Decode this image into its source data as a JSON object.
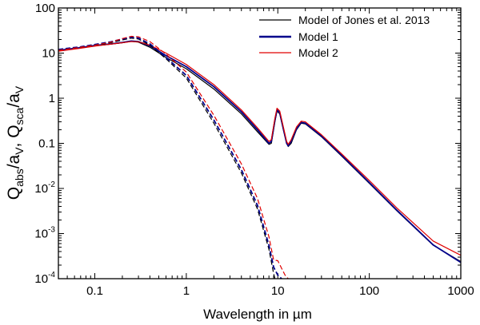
{
  "chart_data": {
    "type": "line",
    "xlabel_main": "Wavelength in ",
    "xlabel_unit": "µm",
    "ylabel": {
      "q1": "Q",
      "s1": "abs",
      "m1": "/a",
      "s2": "V",
      "sep": ", ",
      "q2": "Q",
      "s3": "sca",
      "m2": "/a",
      "s4": "V"
    },
    "x_scale": "log",
    "y_scale": "log",
    "xlim": [
      0.04,
      1000
    ],
    "ylim": [
      0.0001,
      100
    ],
    "x_ticks": [
      {
        "value": 0.1,
        "label": "0.1"
      },
      {
        "value": 1,
        "label": "1"
      },
      {
        "value": 10,
        "label": "10"
      },
      {
        "value": 100,
        "label": "100"
      },
      {
        "value": 1000,
        "label": "1000"
      }
    ],
    "y_ticks": [
      {
        "value": 100,
        "base": "100",
        "exp": ""
      },
      {
        "value": 10,
        "base": "10",
        "exp": ""
      },
      {
        "value": 1,
        "base": "1",
        "exp": ""
      },
      {
        "value": 0.1,
        "base": "0.1",
        "exp": ""
      },
      {
        "value": 0.01,
        "base": "10",
        "exp": "-2"
      },
      {
        "value": 0.001,
        "base": "10",
        "exp": "-3"
      },
      {
        "value": 0.0001,
        "base": "10",
        "exp": "-4"
      }
    ],
    "legend": {
      "position": "top-right",
      "entries": [
        {
          "label": "Model of Jones et al. 2013",
          "color": "#000000"
        },
        {
          "label": "Model 1",
          "color": "#00008b"
        },
        {
          "label": "Model 2",
          "color": "#e00000"
        }
      ]
    },
    "series": [
      {
        "name": "Model of Jones et al. 2013",
        "quantity": "absorption",
        "color": "#000000",
        "dash": "solid",
        "points": [
          [
            0.04,
            11.5
          ],
          [
            0.07,
            13.0
          ],
          [
            0.1,
            14.5
          ],
          [
            0.15,
            15.8
          ],
          [
            0.2,
            17.0
          ],
          [
            0.25,
            18.2
          ],
          [
            0.3,
            17.5
          ],
          [
            0.4,
            13.5
          ],
          [
            0.6,
            8.0
          ],
          [
            1,
            4.5
          ],
          [
            2,
            1.6
          ],
          [
            4,
            0.45
          ],
          [
            6,
            0.18
          ],
          [
            8,
            0.095
          ],
          [
            8.5,
            0.1
          ],
          [
            9.3,
            0.3
          ],
          [
            9.8,
            0.52
          ],
          [
            10.5,
            0.45
          ],
          [
            11.5,
            0.2
          ],
          [
            12.5,
            0.1
          ],
          [
            13,
            0.085
          ],
          [
            14,
            0.1
          ],
          [
            16,
            0.2
          ],
          [
            18,
            0.28
          ],
          [
            20,
            0.27
          ],
          [
            30,
            0.14
          ],
          [
            50,
            0.052
          ],
          [
            100,
            0.013
          ],
          [
            200,
            0.0032
          ],
          [
            500,
            0.00055
          ],
          [
            1000,
            0.00024
          ]
        ]
      },
      {
        "name": "Model 1",
        "quantity": "absorption",
        "color": "#00008b",
        "dash": "solid",
        "points": [
          [
            0.04,
            11.5
          ],
          [
            0.07,
            13.2
          ],
          [
            0.1,
            14.8
          ],
          [
            0.15,
            16.0
          ],
          [
            0.2,
            17.2
          ],
          [
            0.25,
            18.5
          ],
          [
            0.3,
            18.0
          ],
          [
            0.4,
            14.5
          ],
          [
            0.6,
            8.8
          ],
          [
            1,
            5.0
          ],
          [
            2,
            1.8
          ],
          [
            4,
            0.5
          ],
          [
            6,
            0.2
          ],
          [
            8,
            0.1
          ],
          [
            8.5,
            0.11
          ],
          [
            9.3,
            0.33
          ],
          [
            9.8,
            0.55
          ],
          [
            10.5,
            0.48
          ],
          [
            11.5,
            0.21
          ],
          [
            12.5,
            0.1
          ],
          [
            13,
            0.088
          ],
          [
            14,
            0.11
          ],
          [
            16,
            0.21
          ],
          [
            18,
            0.29
          ],
          [
            20,
            0.28
          ],
          [
            30,
            0.145
          ],
          [
            50,
            0.054
          ],
          [
            100,
            0.0135
          ],
          [
            200,
            0.0033
          ],
          [
            500,
            0.00056
          ],
          [
            1000,
            0.00023
          ]
        ]
      },
      {
        "name": "Model 2",
        "quantity": "absorption",
        "color": "#e00000",
        "dash": "solid",
        "points": [
          [
            0.04,
            11.0
          ],
          [
            0.07,
            12.8
          ],
          [
            0.1,
            14.3
          ],
          [
            0.15,
            15.8
          ],
          [
            0.2,
            17.0
          ],
          [
            0.25,
            18.0
          ],
          [
            0.3,
            17.8
          ],
          [
            0.4,
            15.0
          ],
          [
            0.6,
            10.0
          ],
          [
            1,
            5.6
          ],
          [
            2,
            2.0
          ],
          [
            4,
            0.55
          ],
          [
            6,
            0.22
          ],
          [
            8,
            0.11
          ],
          [
            8.5,
            0.12
          ],
          [
            9.3,
            0.36
          ],
          [
            9.8,
            0.6
          ],
          [
            10.5,
            0.52
          ],
          [
            11.5,
            0.23
          ],
          [
            12.5,
            0.11
          ],
          [
            13,
            0.095
          ],
          [
            14,
            0.12
          ],
          [
            16,
            0.23
          ],
          [
            18,
            0.31
          ],
          [
            20,
            0.3
          ],
          [
            30,
            0.155
          ],
          [
            50,
            0.058
          ],
          [
            100,
            0.015
          ],
          [
            200,
            0.0037
          ],
          [
            500,
            0.00068
          ],
          [
            1000,
            0.00033
          ]
        ]
      },
      {
        "name": "Model of Jones et al. 2013",
        "quantity": "scattering",
        "color": "#000000",
        "dash": "dashed",
        "points": [
          [
            0.04,
            12.0
          ],
          [
            0.07,
            13.5
          ],
          [
            0.1,
            15.0
          ],
          [
            0.15,
            17.0
          ],
          [
            0.2,
            19.5
          ],
          [
            0.25,
            21.5
          ],
          [
            0.3,
            20.5
          ],
          [
            0.4,
            15.0
          ],
          [
            0.6,
            7.5
          ],
          [
            1,
            2.8
          ],
          [
            2,
            0.28
          ],
          [
            4,
            0.022
          ],
          [
            6,
            0.0035
          ],
          [
            8,
            0.00045
          ],
          [
            9,
            0.00013
          ],
          [
            9.3,
            0.0001
          ]
        ]
      },
      {
        "name": "Model 1",
        "quantity": "scattering",
        "color": "#00008b",
        "dash": "dashed",
        "points": [
          [
            0.04,
            12.0
          ],
          [
            0.07,
            13.8
          ],
          [
            0.1,
            15.5
          ],
          [
            0.15,
            17.8
          ],
          [
            0.2,
            20.5
          ],
          [
            0.25,
            22.5
          ],
          [
            0.3,
            21.5
          ],
          [
            0.4,
            16.0
          ],
          [
            0.6,
            8.0
          ],
          [
            1,
            3.2
          ],
          [
            2,
            0.33
          ],
          [
            4,
            0.026
          ],
          [
            6,
            0.0042
          ],
          [
            8,
            0.00055
          ],
          [
            9,
            0.00018
          ],
          [
            10,
            0.00012
          ],
          [
            11,
            0.0001
          ]
        ]
      },
      {
        "name": "Model 2",
        "quantity": "scattering",
        "color": "#e00000",
        "dash": "dashed",
        "points": [
          [
            0.04,
            11.5
          ],
          [
            0.07,
            13.5
          ],
          [
            0.1,
            15.0
          ],
          [
            0.15,
            17.5
          ],
          [
            0.2,
            21.0
          ],
          [
            0.25,
            23.5
          ],
          [
            0.3,
            23.0
          ],
          [
            0.4,
            18.0
          ],
          [
            0.6,
            9.5
          ],
          [
            1,
            3.8
          ],
          [
            2,
            0.42
          ],
          [
            4,
            0.035
          ],
          [
            6,
            0.006
          ],
          [
            8,
            0.00085
          ],
          [
            9,
            0.00026
          ],
          [
            10,
            0.00025
          ],
          [
            11,
            0.00017
          ],
          [
            12,
            0.00012
          ],
          [
            13,
            0.0001
          ]
        ]
      }
    ]
  }
}
